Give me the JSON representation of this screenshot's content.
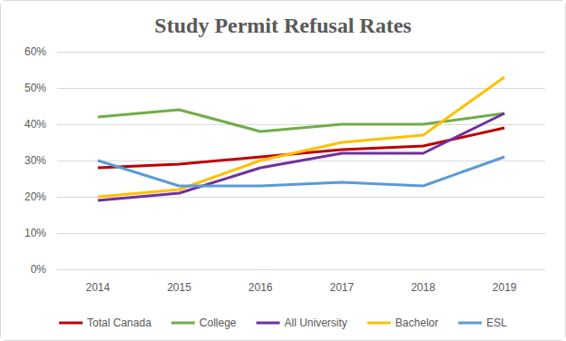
{
  "chart_data": {
    "type": "line",
    "title": "Study Permit Refusal Rates",
    "categories": [
      "2014",
      "2015",
      "2016",
      "2017",
      "2018",
      "2019"
    ],
    "series": [
      {
        "name": "Total Canada",
        "color": "#c00000",
        "values": [
          28,
          29,
          31,
          33,
          34,
          39
        ]
      },
      {
        "name": "College",
        "color": "#70ad47",
        "values": [
          42,
          44,
          38,
          40,
          40,
          43
        ]
      },
      {
        "name": "All University",
        "color": "#7030a0",
        "values": [
          19,
          21,
          28,
          32,
          32,
          43
        ]
      },
      {
        "name": "Bachelor",
        "color": "#ffc000",
        "values": [
          20,
          22,
          30,
          35,
          37,
          53
        ]
      },
      {
        "name": "ESL",
        "color": "#5b9bd5",
        "values": [
          30,
          23,
          23,
          24,
          23,
          31
        ]
      }
    ],
    "ylim": [
      0,
      60
    ],
    "yticks": [
      {
        "value": 0,
        "label": "0%"
      },
      {
        "value": 10,
        "label": "10%"
      },
      {
        "value": 20,
        "label": "20%"
      },
      {
        "value": 30,
        "label": "30%"
      },
      {
        "value": 40,
        "label": "40%"
      },
      {
        "value": 50,
        "label": "50%"
      },
      {
        "value": 60,
        "label": "60%"
      }
    ],
    "grid": true,
    "legend": "bottom",
    "marker": "none"
  }
}
